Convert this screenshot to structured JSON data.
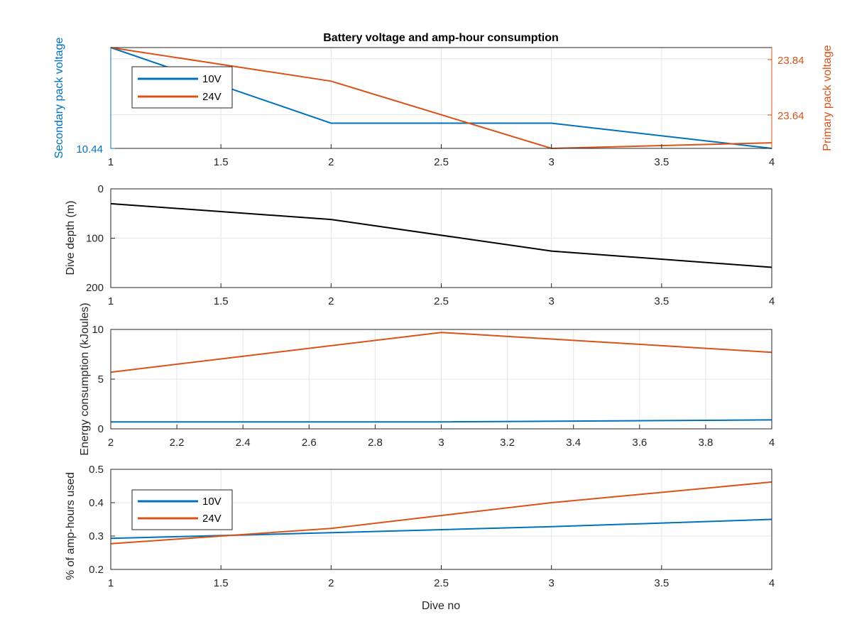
{
  "colors": {
    "blue": "#0072BD",
    "orange": "#D95319",
    "black": "#000000",
    "grid": "#e6e6e6",
    "axis": "#262626"
  },
  "chart_data": [
    {
      "type": "line",
      "title": "Battery voltage and amp-hour consumption",
      "xlabel": "",
      "ylabel_left": "Secondary pack voltage",
      "ylabel_right": "Primary pack voltage",
      "xlim": [
        1,
        4
      ],
      "xticks": [
        "1",
        "1.5",
        "2",
        "2.5",
        "3",
        "3.5",
        "4"
      ],
      "yticks_left": [
        "10.44"
      ],
      "yticks_right": [
        "23.84",
        "23.64"
      ],
      "grid": true,
      "legend": [
        "10V",
        "24V"
      ],
      "legend_position": "top-left",
      "series": [
        {
          "name": "10V",
          "axis": "left",
          "x": [
            1,
            2,
            3,
            4
          ],
          "y": [
            10.6,
            10.48,
            10.48,
            10.44
          ]
        },
        {
          "name": "24V",
          "axis": "right",
          "x": [
            1,
            2,
            3,
            4
          ],
          "y": [
            23.88,
            23.76,
            23.52,
            23.54
          ]
        }
      ]
    },
    {
      "type": "line",
      "xlabel": "",
      "ylabel": "Dive depth (m)",
      "xlim": [
        1,
        4
      ],
      "ylim": [
        0,
        200
      ],
      "y_reversed": true,
      "xticks": [
        "1",
        "1.5",
        "2",
        "2.5",
        "3",
        "3.5",
        "4"
      ],
      "yticks": [
        "0",
        "100",
        "200"
      ],
      "grid": true,
      "series": [
        {
          "x": [
            1,
            2,
            3,
            4
          ],
          "y": [
            30,
            62,
            126,
            159
          ]
        }
      ]
    },
    {
      "type": "line",
      "xlabel": "",
      "ylabel": "Energy consumption (kJoules)",
      "xlim": [
        2,
        4
      ],
      "ylim": [
        0,
        10
      ],
      "xticks": [
        "2",
        "2.2",
        "2.4",
        "2.6",
        "2.8",
        "3",
        "3.2",
        "3.4",
        "3.6",
        "3.8",
        "4"
      ],
      "yticks": [
        "0",
        "5",
        "10"
      ],
      "grid": true,
      "series": [
        {
          "name": "10V",
          "x": [
            2,
            3,
            4
          ],
          "y": [
            0.7,
            0.7,
            0.9
          ]
        },
        {
          "name": "24V",
          "x": [
            2,
            3,
            4
          ],
          "y": [
            5.7,
            9.7,
            7.7
          ]
        }
      ]
    },
    {
      "type": "line",
      "xlabel": "Dive no",
      "ylabel": "% of amp-hours used",
      "xlim": [
        1,
        4
      ],
      "ylim": [
        0.2,
        0.5
      ],
      "xticks": [
        "1",
        "1.5",
        "2",
        "2.5",
        "3",
        "3.5",
        "4"
      ],
      "yticks": [
        "0.5",
        "0.4",
        "0.3",
        "0.2"
      ],
      "grid": true,
      "legend": [
        "10V",
        "24V"
      ],
      "legend_position": "top-left",
      "series": [
        {
          "name": "10V",
          "x": [
            1,
            2,
            3,
            4
          ],
          "y": [
            0.293,
            0.31,
            0.328,
            0.35
          ]
        },
        {
          "name": "24V",
          "x": [
            1,
            2,
            3,
            4
          ],
          "y": [
            0.277,
            0.323,
            0.4,
            0.462
          ]
        }
      ]
    }
  ]
}
